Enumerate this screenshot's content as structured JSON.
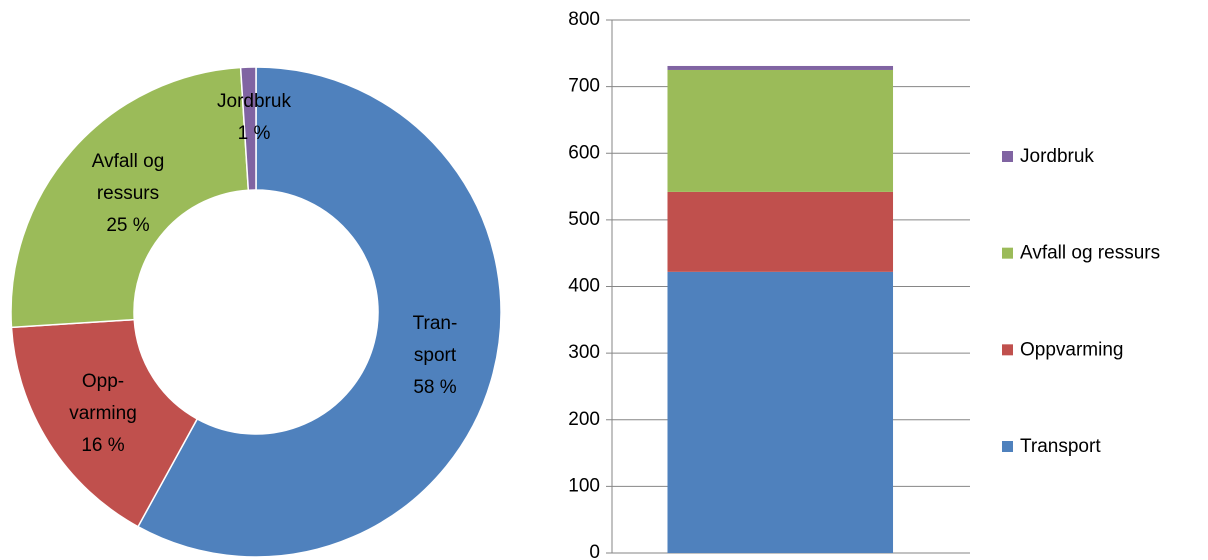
{
  "chart_data": [
    {
      "type": "donut",
      "categories": [
        "Transport",
        "Oppvarming",
        "Avfall og ressurs",
        "Jordbruk"
      ],
      "label_lines": [
        [
          "Tran-",
          "sport"
        ],
        [
          "Opp-",
          "varming"
        ],
        [
          "Avfall og",
          "ressurs"
        ],
        [
          "Jordbruk"
        ]
      ],
      "values": [
        58,
        16,
        25,
        1
      ],
      "value_labels": [
        "58 %",
        "16 %",
        "25 %",
        "1 %"
      ],
      "colors": [
        "#4f81bd",
        "#c0504d",
        "#9bbb59",
        "#8064a2"
      ]
    },
    {
      "type": "stacked_bar",
      "categories": [
        null
      ],
      "series": [
        {
          "name": "Transport",
          "color": "#4f81bd",
          "values": [
            422
          ]
        },
        {
          "name": "Oppvarming",
          "color": "#c0504d",
          "values": [
            120
          ]
        },
        {
          "name": "Avfall og ressurs",
          "color": "#9bbb59",
          "values": [
            183
          ]
        },
        {
          "name": "Jordbruk",
          "color": "#8064a2",
          "values": [
            6
          ]
        }
      ],
      "ylim": [
        0,
        800
      ],
      "yticks": [
        0,
        100,
        200,
        300,
        400,
        500,
        600,
        700,
        800
      ],
      "grid": true,
      "legend": "right"
    }
  ]
}
